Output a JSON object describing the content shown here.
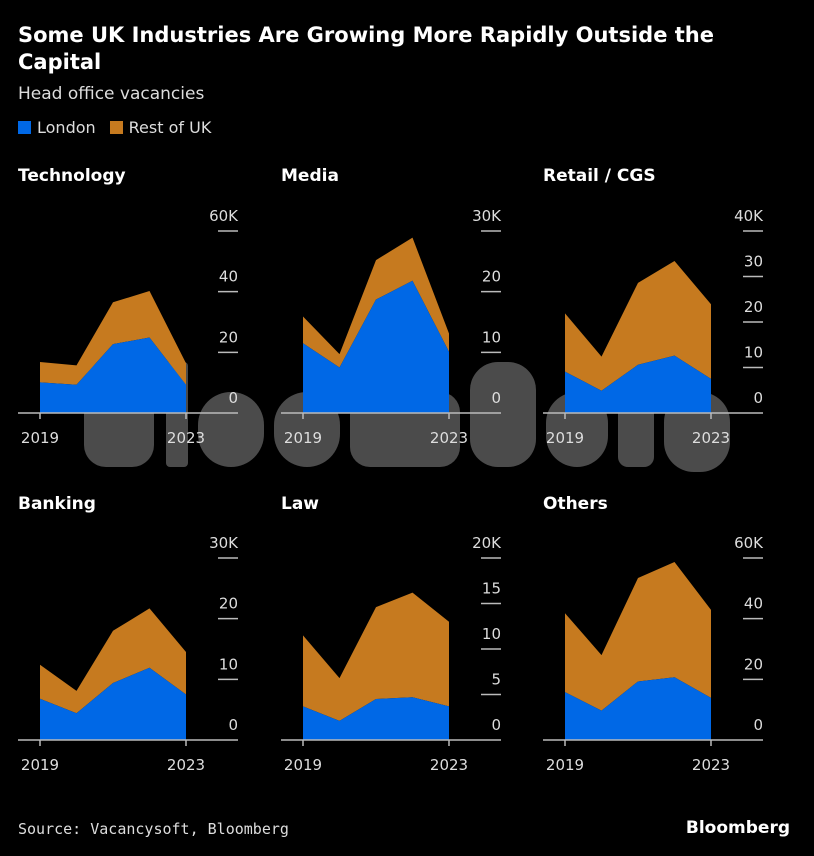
{
  "header": {
    "title": "Some UK Industries Are Growing More Rapidly Outside the Capital",
    "subtitle": "Head office vacancies"
  },
  "legend": [
    {
      "label": "London",
      "color": "#0068e6"
    },
    {
      "label": "Rest of UK",
      "color": "#c67a1f"
    }
  ],
  "watermark": "Bloomberg",
  "footer": {
    "source": "Source: Vacancysoft, Bloomberg",
    "logo": "Bloomberg"
  },
  "chart_data": [
    {
      "type": "area",
      "title": "Technology",
      "x": [
        2019,
        2020,
        2021,
        2022,
        2023
      ],
      "xticks": [
        "2019",
        "2023"
      ],
      "ylim": [
        0,
        60
      ],
      "yticks": [
        "0",
        "20",
        "40",
        "60K"
      ],
      "series": [
        {
          "name": "London",
          "values": [
            10.1,
            9.3,
            22.7,
            24.9,
            9.3
          ]
        },
        {
          "name": "Rest of UK",
          "values": [
            6.7,
            6.4,
            13.8,
            15.3,
            7.1
          ]
        }
      ]
    },
    {
      "type": "area",
      "title": "Media",
      "x": [
        2019,
        2020,
        2021,
        2022,
        2023
      ],
      "xticks": [
        "2019",
        "2023"
      ],
      "ylim": [
        0,
        30
      ],
      "yticks": [
        "0",
        "10",
        "20",
        "30K"
      ],
      "series": [
        {
          "name": "London",
          "values": [
            11.5,
            7.5,
            18.7,
            21.8,
            10.1
          ]
        },
        {
          "name": "Rest of UK",
          "values": [
            4.4,
            2.2,
            6.5,
            7.1,
            3.0
          ]
        }
      ]
    },
    {
      "type": "area",
      "title": "Retail / CGS",
      "x": [
        2019,
        2020,
        2021,
        2022,
        2023
      ],
      "xticks": [
        "2019",
        "2023"
      ],
      "ylim": [
        0,
        40
      ],
      "yticks": [
        "0",
        "10",
        "20",
        "30",
        "40K"
      ],
      "series": [
        {
          "name": "London",
          "values": [
            9.1,
            4.9,
            10.6,
            12.6,
            7.5
          ]
        },
        {
          "name": "Rest of UK",
          "values": [
            12.8,
            7.5,
            18.0,
            20.8,
            16.4
          ]
        }
      ]
    },
    {
      "type": "area",
      "title": "Banking",
      "x": [
        2019,
        2020,
        2021,
        2022,
        2023
      ],
      "xticks": [
        "2019",
        "2023"
      ],
      "ylim": [
        0,
        30
      ],
      "yticks": [
        "0",
        "10",
        "20",
        "30K"
      ],
      "series": [
        {
          "name": "London",
          "values": [
            6.8,
            4.4,
            9.4,
            11.9,
            7.5
          ]
        },
        {
          "name": "Rest of UK",
          "values": [
            5.6,
            3.7,
            8.6,
            9.8,
            7.0
          ]
        }
      ]
    },
    {
      "type": "area",
      "title": "Law",
      "x": [
        2019,
        2020,
        2021,
        2022,
        2023
      ],
      "xticks": [
        "2019",
        "2023"
      ],
      "ylim": [
        0,
        20
      ],
      "yticks": [
        "0",
        "5",
        "10",
        "15",
        "20K"
      ],
      "series": [
        {
          "name": "London",
          "values": [
            3.7,
            2.1,
            4.5,
            4.7,
            3.7
          ]
        },
        {
          "name": "Rest of UK",
          "values": [
            7.8,
            4.7,
            10.1,
            11.5,
            9.3
          ]
        }
      ]
    },
    {
      "type": "area",
      "title": "Others",
      "x": [
        2019,
        2020,
        2021,
        2022,
        2023
      ],
      "xticks": [
        "2019",
        "2023"
      ],
      "ylim": [
        0,
        60
      ],
      "yticks": [
        "0",
        "20",
        "40",
        "60K"
      ],
      "series": [
        {
          "name": "London",
          "values": [
            15.8,
            9.7,
            19.3,
            20.7,
            13.9
          ]
        },
        {
          "name": "Rest of UK",
          "values": [
            26.0,
            18.3,
            34.1,
            38.0,
            29.0
          ]
        }
      ]
    }
  ]
}
